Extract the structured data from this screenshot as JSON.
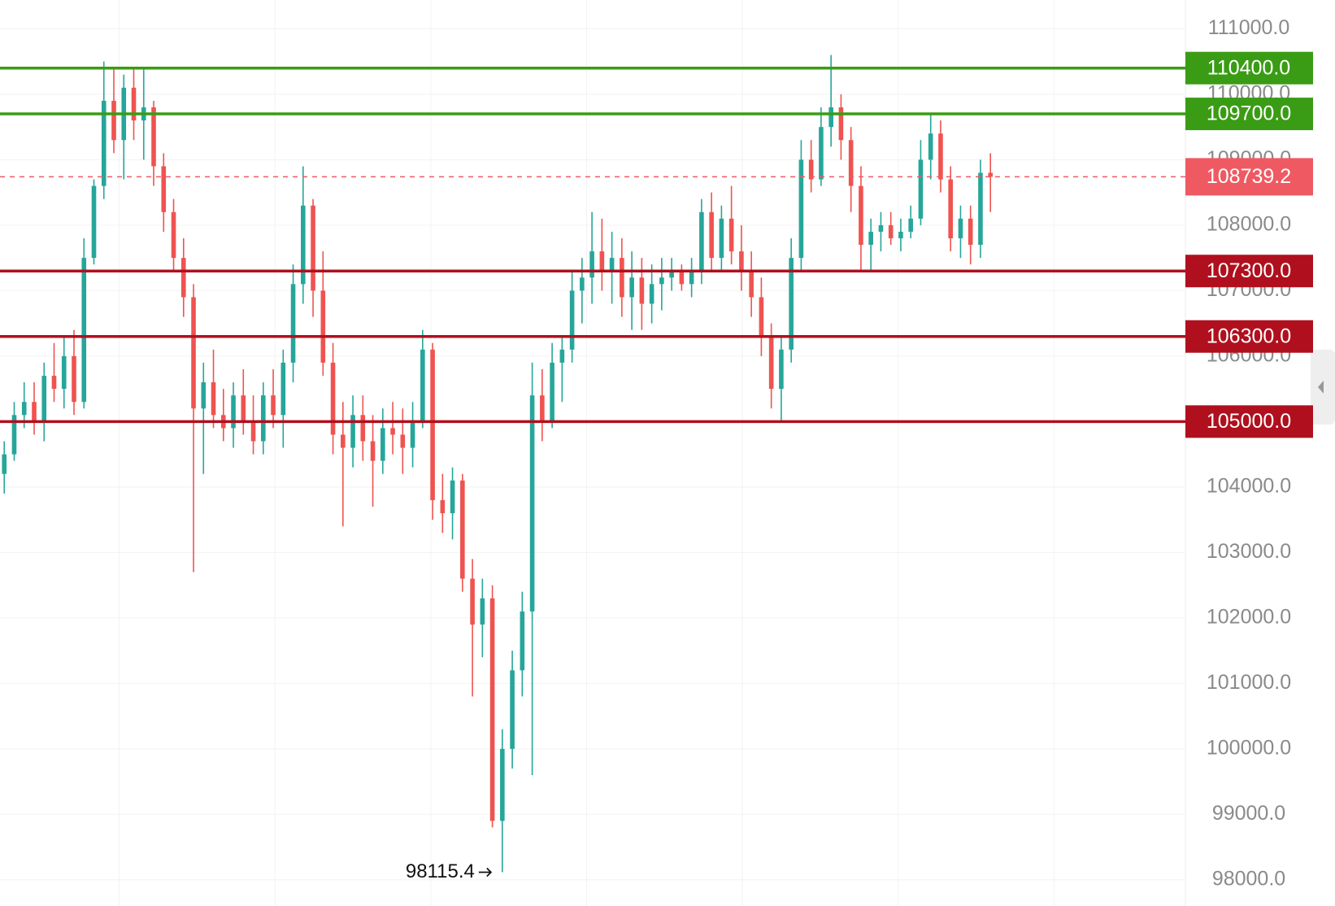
{
  "chart_data": {
    "type": "candlestick",
    "up_color": "#26a69a",
    "down_color": "#ef5350",
    "grid": true,
    "ylim": [
      97600,
      111440
    ],
    "yticks": [
      {
        "value": 98000,
        "label": "98000.0"
      },
      {
        "value": 99000,
        "label": "99000.0"
      },
      {
        "value": 100000,
        "label": "100000.0"
      },
      {
        "value": 101000,
        "label": "101000.0"
      },
      {
        "value": 102000,
        "label": "102000.0"
      },
      {
        "value": 103000,
        "label": "103000.0"
      },
      {
        "value": 104000,
        "label": "104000.0"
      },
      {
        "value": 105000,
        "label": "105000.0"
      },
      {
        "value": 106000,
        "label": "106000.0"
      },
      {
        "value": 107000,
        "label": "107000.0"
      },
      {
        "value": 108000,
        "label": "108000.0"
      },
      {
        "value": 109000,
        "label": "109000.0"
      },
      {
        "value": 110000,
        "label": "110000.0"
      },
      {
        "value": 111000,
        "label": "111000.0"
      }
    ],
    "open": [
      104200,
      104500,
      105100,
      105300,
      105000,
      105700,
      105500,
      106000,
      105300,
      107500,
      108600,
      109900,
      109300,
      110100,
      109600,
      109800,
      108900,
      108200,
      107500,
      106900,
      105200,
      105600,
      105100,
      104900,
      105400,
      105000,
      104700,
      105400,
      105100,
      105900,
      107100,
      108300,
      107000,
      105900,
      104800,
      104600,
      105100,
      104700,
      104400,
      104900,
      104800,
      104600,
      105000,
      106100,
      103800,
      103600,
      104100,
      102600,
      101900,
      102300,
      98900,
      100000,
      101200,
      102100,
      105400,
      105000,
      105900,
      106100,
      107000,
      107200,
      107600,
      107300,
      107500,
      106900,
      107200,
      106800,
      107100,
      107200,
      107300,
      107100,
      107300,
      108200,
      107500,
      108100,
      107600,
      107300,
      106900,
      106300,
      105500,
      106100,
      107500,
      109000,
      108700,
      109500,
      109800,
      109300,
      108600,
      107700,
      107900,
      108000,
      107800,
      107900,
      108100,
      109000,
      109400,
      108700,
      107800,
      108100,
      107700,
      108800
    ],
    "high": [
      104700,
      105300,
      105600,
      105600,
      105900,
      106200,
      106300,
      106400,
      107800,
      108700,
      110500,
      110400,
      110300,
      110400,
      110400,
      109900,
      109100,
      108400,
      107800,
      107100,
      105900,
      106100,
      105500,
      105600,
      105800,
      105400,
      105600,
      105800,
      106100,
      107400,
      108900,
      108400,
      107600,
      106200,
      105300,
      105400,
      105400,
      105100,
      105200,
      105300,
      105200,
      105300,
      106400,
      106200,
      104200,
      104300,
      104200,
      102900,
      102600,
      102500,
      100300,
      101500,
      102400,
      105900,
      105800,
      106200,
      106300,
      107300,
      107500,
      108200,
      108100,
      107900,
      107800,
      107600,
      107500,
      107400,
      107500,
      107500,
      107400,
      107500,
      108400,
      108500,
      108300,
      108600,
      108000,
      107600,
      107200,
      106500,
      106300,
      107800,
      109300,
      109300,
      109800,
      110600,
      110000,
      109500,
      108900,
      108100,
      108200,
      108200,
      108100,
      108300,
      109300,
      109700,
      109600,
      108900,
      108300,
      108300,
      109000,
      109100
    ],
    "low": [
      103900,
      104400,
      104900,
      104800,
      104700,
      105300,
      105200,
      105100,
      105200,
      107400,
      108400,
      109100,
      108700,
      109300,
      109000,
      108600,
      107900,
      107300,
      106600,
      102700,
      104200,
      104900,
      104700,
      104600,
      104800,
      104500,
      104500,
      104900,
      104600,
      105600,
      106800,
      106600,
      105700,
      104500,
      103400,
      104300,
      104400,
      103700,
      104200,
      104500,
      104200,
      104300,
      104900,
      103500,
      103300,
      103200,
      102400,
      100800,
      101400,
      98800,
      98115.4,
      99700,
      100800,
      99600,
      104700,
      104900,
      105300,
      105900,
      106500,
      106800,
      107000,
      106800,
      106600,
      106400,
      106400,
      106500,
      106700,
      107000,
      107000,
      106900,
      107100,
      107300,
      107300,
      107400,
      107000,
      106600,
      106000,
      105200,
      105000,
      105900,
      107300,
      108500,
      108600,
      109200,
      109000,
      108200,
      107300,
      107300,
      107600,
      107700,
      107600,
      107800,
      108000,
      108700,
      108500,
      107600,
      107500,
      107400,
      107500,
      108200
    ],
    "close": [
      104500,
      105100,
      105300,
      105000,
      105700,
      105500,
      106000,
      105300,
      107500,
      108600,
      109900,
      109300,
      110100,
      109600,
      109800,
      108900,
      108200,
      107500,
      106900,
      105200,
      105600,
      105100,
      104900,
      105400,
      105000,
      104700,
      105400,
      105100,
      105900,
      107100,
      108300,
      107000,
      105900,
      104800,
      104600,
      105100,
      104700,
      104400,
      104900,
      104800,
      104600,
      105000,
      106100,
      103800,
      103600,
      104100,
      102600,
      101900,
      102300,
      98900,
      100000,
      101200,
      102100,
      105400,
      105000,
      105900,
      106100,
      107000,
      107200,
      107600,
      107300,
      107500,
      106900,
      107200,
      106800,
      107100,
      107200,
      107300,
      107100,
      107300,
      108200,
      107500,
      108100,
      107600,
      107300,
      106900,
      106300,
      105500,
      106100,
      107500,
      109000,
      108700,
      109500,
      109800,
      109300,
      108600,
      107700,
      107900,
      108000,
      107800,
      107900,
      108100,
      109000,
      109400,
      108700,
      107800,
      108100,
      107700,
      108800,
      108739.2
    ],
    "levels": [
      {
        "value": 110400,
        "label": "110400.0",
        "color": "#3a9c14"
      },
      {
        "value": 109700,
        "label": "109700.0",
        "color": "#3a9c14"
      },
      {
        "value": 107300,
        "label": "107300.0",
        "color": "#b0101e"
      },
      {
        "value": 106300,
        "label": "106300.0",
        "color": "#b0101e"
      },
      {
        "value": 105000,
        "label": "105000.0",
        "color": "#b0101e"
      }
    ],
    "last_price": {
      "value": 108739.2,
      "label": "108739.2",
      "color": "#ef5a62"
    },
    "annotation": {
      "value": 98115.4,
      "label": "98115.4"
    }
  }
}
